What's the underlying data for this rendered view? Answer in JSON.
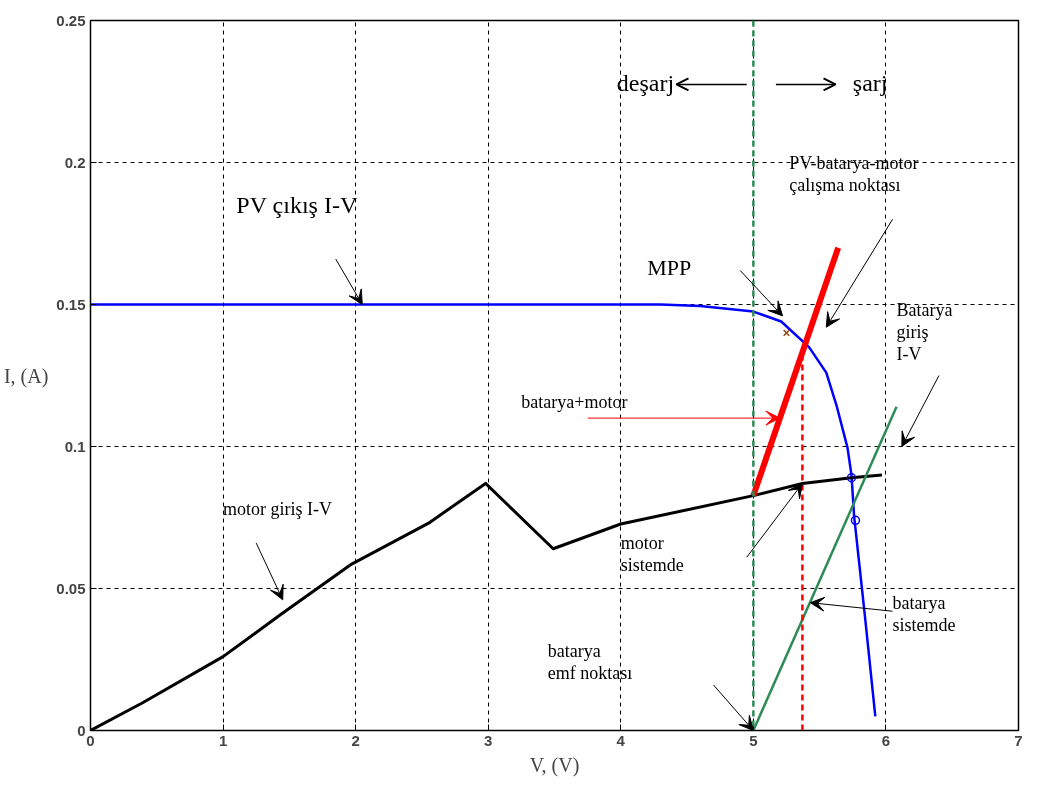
{
  "chart_data": {
    "type": "line",
    "xlabel": "V, (V)",
    "ylabel": "I, (A)",
    "xlim": [
      0,
      7
    ],
    "ylim": [
      0,
      0.25
    ],
    "xticks": [
      0,
      1,
      2,
      3,
      4,
      5,
      6,
      7
    ],
    "yticks": [
      0,
      0.05,
      0.1,
      0.15,
      0.2,
      0.25
    ],
    "grid": true,
    "series": [
      {
        "color": "#0000ff",
        "x": [
          0,
          1,
          2,
          3,
          4,
          4.3,
          4.6,
          5.0,
          5.21,
          5.42,
          5.55,
          5.63,
          5.71,
          5.74,
          5.76,
          5.84,
          5.92
        ],
        "values": [
          0.15,
          0.15,
          0.15,
          0.15,
          0.15,
          0.15,
          0.1495,
          0.1475,
          0.144,
          0.135,
          0.126,
          0.114,
          0.0996,
          0.09,
          0.0755,
          0.041,
          0.005
        ]
      },
      {
        "color": "#000000",
        "x": [
          0,
          0.39,
          1.0,
          1.44,
          1.97,
          2.55,
          2.98,
          3.49,
          4.0,
          5.0,
          5.37,
          5.74,
          5.97
        ],
        "values": [
          0,
          0.0097,
          0.026,
          0.041,
          0.0586,
          0.073,
          0.087,
          0.064,
          0.0727,
          0.0827,
          0.087,
          0.089,
          0.09
        ]
      },
      {
        "color": "#ff0000",
        "x": [
          5.0,
          5.64
        ],
        "values": [
          0.0827,
          0.17
        ]
      },
      {
        "color": "#2e8b57",
        "x": [
          5.0,
          6.08
        ],
        "values": [
          0,
          0.114
        ]
      },
      {
        "color": "#ff0000",
        "line_style": "dashed",
        "x": [
          5.37,
          5.37
        ],
        "values": [
          0,
          0.135
        ]
      },
      {
        "type": "scatter",
        "marker": "cross",
        "color": "#8b4513",
        "x": [
          5.25
        ],
        "values": [
          0.14
        ]
      },
      {
        "type": "scatter",
        "marker": "circle",
        "color": "#0000ff",
        "x": [
          5.74,
          5.77
        ],
        "values": [
          0.089,
          0.074
        ]
      }
    ],
    "ref_lines": [
      {
        "axis": "x",
        "value": 5,
        "color": "#2e8b57",
        "line_style": "dashed"
      }
    ],
    "annotations": [
      "deşarj",
      "şarj",
      "PV çıkış I-V",
      "MPP",
      "PV-batarya-motor\nçalışma noktası",
      {
        "text": "batarya+motor",
        "x": 5.2,
        "y": 0.11
      },
      "Batarya\ngiriş\nI-V",
      "motor giriş I-V",
      "motor\nsistemde",
      {
        "text": "batarya\nsistemde",
        "x": 5.43,
        "y": 0.045
      },
      "batarya\nemf noktası"
    ]
  }
}
